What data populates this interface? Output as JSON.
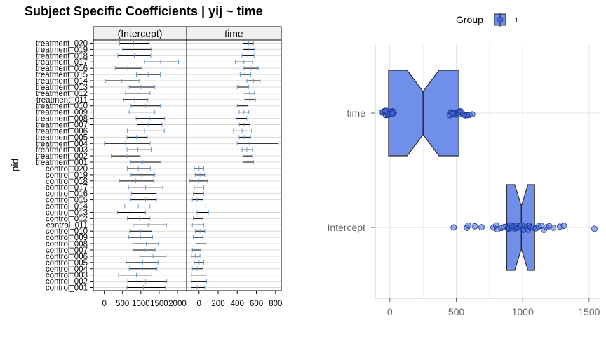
{
  "colors": {
    "accent": "#4169E1",
    "fill": "#6f8fea",
    "outline": "#2a2a2a",
    "grid": "#d9d9d9",
    "errorbar": "#000000",
    "point": "#6b9bd1"
  },
  "chart_data": [
    {
      "type": "forest",
      "title": "Subject Specific Coefficients | yij ~ time",
      "ylabel": "pid",
      "xlabel": "",
      "panels": [
        {
          "name": "(Intercept)",
          "xlim": [
            -300,
            2250
          ],
          "ticks": [
            0,
            500,
            1000,
            1500,
            2000
          ],
          "tick_labels": [
            "0",
            "500",
            "1000",
            "1500",
            "2000"
          ]
        },
        {
          "name": "time",
          "xlim": [
            -130,
            860
          ],
          "ticks": [
            0,
            200,
            400,
            600,
            800
          ],
          "tick_labels": [
            "0",
            "200",
            "400",
            "600",
            "800"
          ]
        }
      ],
      "subjects": [
        {
          "label": "treatment_020",
          "int": [
            420,
            800,
            1230
          ],
          "time": [
            460,
            520,
            570
          ]
        },
        {
          "label": "treatment_019",
          "int": [
            500,
            900,
            1280
          ],
          "time": [
            460,
            515,
            580
          ]
        },
        {
          "label": "treatment_018",
          "int": [
            370,
            820,
            1270
          ],
          "time": [
            450,
            510,
            575
          ]
        },
        {
          "label": "treatment_017",
          "int": [
            1100,
            1540,
            2030
          ],
          "time": [
            380,
            470,
            560
          ]
        },
        {
          "label": "treatment_016",
          "int": [
            300,
            640,
            1030
          ],
          "time": [
            470,
            545,
            620
          ]
        },
        {
          "label": "treatment_015",
          "int": [
            880,
            1200,
            1530
          ],
          "time": [
            430,
            480,
            540
          ]
        },
        {
          "label": "treatment_014",
          "int": [
            40,
            480,
            950
          ],
          "time": [
            500,
            570,
            640
          ]
        },
        {
          "label": "treatment_013",
          "int": [
            680,
            1000,
            1380
          ],
          "time": [
            400,
            460,
            520
          ]
        },
        {
          "label": "treatment_012",
          "int": [
            580,
            900,
            1250
          ],
          "time": [
            480,
            530,
            580
          ]
        },
        {
          "label": "treatment_011",
          "int": [
            530,
            830,
            1190
          ],
          "time": [
            480,
            530,
            590
          ]
        },
        {
          "label": "treatment_010",
          "int": [
            730,
            1130,
            1530
          ],
          "time": [
            400,
            460,
            510
          ]
        },
        {
          "label": "treatment_009",
          "int": [
            680,
            1030,
            1380
          ],
          "time": [
            420,
            470,
            520
          ]
        },
        {
          "label": "treatment_008",
          "int": [
            870,
            1250,
            1650
          ],
          "time": [
            390,
            440,
            500
          ]
        },
        {
          "label": "treatment_007",
          "int": [
            900,
            1200,
            1580
          ],
          "time": [
            420,
            470,
            530
          ]
        },
        {
          "label": "treatment_006",
          "int": [
            630,
            1100,
            1640
          ],
          "time": [
            360,
            450,
            550
          ]
        },
        {
          "label": "treatment_005",
          "int": [
            620,
            880,
            1180
          ],
          "time": [
            420,
            470,
            540
          ]
        },
        {
          "label": "treatment_004",
          "int": [
            0,
            580,
            1250
          ],
          "time": [
            400,
            530,
            830
          ]
        },
        {
          "label": "treatment_003",
          "int": [
            620,
            920,
            1280
          ],
          "time": [
            450,
            500,
            560
          ]
        },
        {
          "label": "treatment_002",
          "int": [
            190,
            620,
            980
          ],
          "time": [
            460,
            510,
            560
          ]
        },
        {
          "label": "treatment_001",
          "int": [
            720,
            1050,
            1550
          ],
          "time": [
            460,
            510,
            570
          ]
        },
        {
          "label": "control_020",
          "int": [
            630,
            930,
            1260
          ],
          "time": [
            -50,
            0,
            50
          ]
        },
        {
          "label": "control_019",
          "int": [
            730,
            1020,
            1380
          ],
          "time": [
            -40,
            10,
            60
          ]
        },
        {
          "label": "control_018",
          "int": [
            410,
            860,
            1350
          ],
          "time": [
            -100,
            0,
            90
          ]
        },
        {
          "label": "control_017",
          "int": [
            660,
            1130,
            1600
          ],
          "time": [
            -50,
            -10,
            50
          ]
        },
        {
          "label": "control_016",
          "int": [
            740,
            1030,
            1420
          ],
          "time": [
            -60,
            -10,
            50
          ]
        },
        {
          "label": "control_015",
          "int": [
            720,
            1130,
            1430
          ],
          "time": [
            -70,
            -20,
            40
          ]
        },
        {
          "label": "control_014",
          "int": [
            560,
            930,
            1250
          ],
          "time": [
            -30,
            20,
            70
          ]
        },
        {
          "label": "control_013",
          "int": [
            360,
            700,
            1130
          ],
          "time": [
            -20,
            40,
            100
          ]
        },
        {
          "label": "control_012",
          "int": [
            630,
            960,
            1250
          ],
          "time": [
            -60,
            -10,
            40
          ]
        },
        {
          "label": "control_011",
          "int": [
            790,
            1200,
            1700
          ],
          "time": [
            -70,
            -10,
            50
          ]
        },
        {
          "label": "control_010",
          "int": [
            690,
            990,
            1300
          ],
          "time": [
            -40,
            10,
            60
          ]
        },
        {
          "label": "control_009",
          "int": [
            670,
            990,
            1320
          ],
          "time": [
            -60,
            -10,
            40
          ]
        },
        {
          "label": "control_008",
          "int": [
            780,
            1150,
            1480
          ],
          "time": [
            -30,
            20,
            70
          ]
        },
        {
          "label": "control_007",
          "int": [
            780,
            1100,
            1390
          ],
          "time": [
            -70,
            -30,
            20
          ]
        },
        {
          "label": "control_006",
          "int": [
            970,
            1330,
            1690
          ],
          "time": [
            -80,
            -40,
            10
          ]
        },
        {
          "label": "control_005",
          "int": [
            600,
            1050,
            1470
          ],
          "time": [
            -50,
            0,
            50
          ]
        },
        {
          "label": "control_004",
          "int": [
            680,
            1040,
            1440
          ],
          "time": [
            -70,
            -20,
            40
          ]
        },
        {
          "label": "control_003",
          "int": [
            390,
            880,
            1300
          ],
          "time": [
            -80,
            -10,
            70
          ]
        },
        {
          "label": "control_002",
          "int": [
            640,
            1130,
            1710
          ],
          "time": [
            -80,
            -10,
            80
          ]
        },
        {
          "label": "control_001",
          "int": [
            620,
            1070,
            1670
          ],
          "time": [
            -80,
            -20,
            60
          ]
        }
      ]
    },
    {
      "type": "boxplot",
      "legend": {
        "title": "Group",
        "entries": [
          "1"
        ],
        "position": "top"
      },
      "categories": [
        "Intercept",
        "time"
      ],
      "xlim": [
        -110,
        1580
      ],
      "ticks": [
        0,
        500,
        1000,
        1500
      ],
      "tick_labels": [
        "0",
        "500",
        "1000",
        "1500"
      ],
      "boxes": [
        {
          "category": "Intercept",
          "lower": 880,
          "q1": 880,
          "median": 990,
          "q3": 1090,
          "upper": 1090,
          "notch_low": 940,
          "notch_high": 1040
        },
        {
          "category": "time",
          "lower": -10,
          "q1": -10,
          "median": 250,
          "q3": 520,
          "upper": 520,
          "notch_low": 130,
          "notch_high": 370
        }
      ],
      "points": {
        "Intercept": [
          480,
          580,
          590,
          640,
          690,
          780,
          800,
          810,
          840,
          860,
          880,
          890,
          900,
          905,
          920,
          930,
          940,
          950,
          960,
          970,
          980,
          990,
          1000,
          1010,
          1020,
          1030,
          1040,
          1050,
          1060,
          1080,
          1100,
          1120,
          1140,
          1160,
          1180,
          1200,
          1230,
          1280,
          1310,
          1540
        ],
        "time": [
          -60,
          -50,
          -40,
          -30,
          -20,
          -15,
          -10,
          -5,
          0,
          5,
          10,
          15,
          20,
          25,
          30,
          -35,
          -25,
          10,
          -8,
          18,
          450,
          460,
          470,
          480,
          490,
          500,
          505,
          510,
          515,
          520,
          525,
          530,
          540,
          550,
          560,
          570,
          580,
          600,
          620,
          470
        ]
      }
    }
  ]
}
